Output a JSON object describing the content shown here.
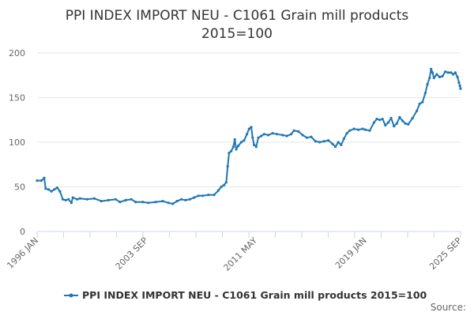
{
  "chart_data": {
    "type": "line",
    "title_lines": [
      "PPI INDEX IMPORT NEU - C1061 Grain mill products",
      "2015=100"
    ],
    "xlabel": "",
    "ylabel": "",
    "x_range": [
      "1996-01",
      "2025-09"
    ],
    "ylim": [
      0,
      200
    ],
    "y_ticks": [
      0,
      50,
      100,
      150,
      200
    ],
    "x_tick_labels": [
      {
        "label": "1996 JAN",
        "t": 1996.0
      },
      {
        "label": "2003 SEP",
        "t": 2003.667
      },
      {
        "label": "2011 MAY",
        "t": 2011.333
      },
      {
        "label": "2019 JAN",
        "t": 2019.0
      },
      {
        "label": "2025 SEP",
        "t": 2025.667
      }
    ],
    "grid": "horizontal",
    "legend_position": "bottom-center",
    "series": [
      {
        "name": "PPI INDEX IMPORT NEU - C1061 Grain mill products 2015=100",
        "color": "#1f77b4",
        "points": [
          [
            1996.0,
            57
          ],
          [
            1996.3,
            57
          ],
          [
            1996.5,
            60
          ],
          [
            1996.6,
            48
          ],
          [
            1996.8,
            47
          ],
          [
            1997.0,
            45
          ],
          [
            1997.2,
            47
          ],
          [
            1997.4,
            49
          ],
          [
            1997.6,
            45
          ],
          [
            1997.8,
            36
          ],
          [
            1998.0,
            35
          ],
          [
            1998.2,
            36
          ],
          [
            1998.4,
            32
          ],
          [
            1998.5,
            38
          ],
          [
            1998.8,
            36
          ],
          [
            1999.0,
            37
          ],
          [
            1999.5,
            36
          ],
          [
            2000.0,
            37
          ],
          [
            2000.5,
            34
          ],
          [
            2001.0,
            35
          ],
          [
            2001.5,
            36
          ],
          [
            2001.8,
            33
          ],
          [
            2002.2,
            35
          ],
          [
            2002.6,
            36
          ],
          [
            2002.9,
            33
          ],
          [
            2003.4,
            33
          ],
          [
            2003.8,
            32
          ],
          [
            2004.3,
            33
          ],
          [
            2004.8,
            34
          ],
          [
            2005.2,
            32
          ],
          [
            2005.5,
            31
          ],
          [
            2005.8,
            34
          ],
          [
            2006.1,
            36
          ],
          [
            2006.4,
            35
          ],
          [
            2006.7,
            36
          ],
          [
            2007.0,
            38
          ],
          [
            2007.3,
            40
          ],
          [
            2007.6,
            40
          ],
          [
            2008.0,
            41
          ],
          [
            2008.4,
            41
          ],
          [
            2008.7,
            46
          ],
          [
            2008.9,
            50
          ],
          [
            2009.1,
            52
          ],
          [
            2009.25,
            55
          ],
          [
            2009.35,
            73
          ],
          [
            2009.45,
            88
          ],
          [
            2009.6,
            90
          ],
          [
            2009.75,
            95
          ],
          [
            2009.85,
            103
          ],
          [
            2009.95,
            92
          ],
          [
            2010.1,
            96
          ],
          [
            2010.3,
            100
          ],
          [
            2010.5,
            102
          ],
          [
            2010.7,
            109
          ],
          [
            2010.85,
            115
          ],
          [
            2011.0,
            117
          ],
          [
            2011.1,
            105
          ],
          [
            2011.2,
            97
          ],
          [
            2011.35,
            95
          ],
          [
            2011.5,
            105
          ],
          [
            2011.7,
            107
          ],
          [
            2011.9,
            109
          ],
          [
            2012.2,
            108
          ],
          [
            2012.5,
            110
          ],
          [
            2012.8,
            109
          ],
          [
            2013.2,
            108
          ],
          [
            2013.5,
            107
          ],
          [
            2013.8,
            109
          ],
          [
            2014.0,
            113
          ],
          [
            2014.3,
            112
          ],
          [
            2014.6,
            108
          ],
          [
            2014.9,
            105
          ],
          [
            2015.2,
            106
          ],
          [
            2015.5,
            101
          ],
          [
            2015.8,
            100
          ],
          [
            2016.1,
            101
          ],
          [
            2016.4,
            102
          ],
          [
            2016.7,
            98
          ],
          [
            2016.9,
            95
          ],
          [
            2017.1,
            100
          ],
          [
            2017.3,
            97
          ],
          [
            2017.5,
            104
          ],
          [
            2017.7,
            110
          ],
          [
            2017.9,
            113
          ],
          [
            2018.2,
            115
          ],
          [
            2018.5,
            114
          ],
          [
            2018.8,
            115
          ],
          [
            2019.0,
            114
          ],
          [
            2019.3,
            113
          ],
          [
            2019.6,
            122
          ],
          [
            2019.8,
            126
          ],
          [
            2020.0,
            125
          ],
          [
            2020.2,
            126
          ],
          [
            2020.4,
            119
          ],
          [
            2020.6,
            122
          ],
          [
            2020.8,
            127
          ],
          [
            2021.0,
            118
          ],
          [
            2021.2,
            121
          ],
          [
            2021.4,
            128
          ],
          [
            2021.6,
            124
          ],
          [
            2021.8,
            121
          ],
          [
            2022.0,
            120
          ],
          [
            2022.3,
            127
          ],
          [
            2022.6,
            135
          ],
          [
            2022.8,
            143
          ],
          [
            2023.0,
            145
          ],
          [
            2023.2,
            155
          ],
          [
            2023.35,
            165
          ],
          [
            2023.5,
            172
          ],
          [
            2023.6,
            182
          ],
          [
            2023.7,
            178
          ],
          [
            2023.8,
            172
          ],
          [
            2024.0,
            176
          ],
          [
            2024.2,
            173
          ],
          [
            2024.4,
            174
          ],
          [
            2024.6,
            179
          ],
          [
            2024.8,
            178
          ],
          [
            2025.0,
            178
          ],
          [
            2025.15,
            176
          ],
          [
            2025.3,
            178
          ],
          [
            2025.45,
            173
          ],
          [
            2025.55,
            167
          ],
          [
            2025.62,
            163
          ],
          [
            2025.667,
            160
          ]
        ]
      }
    ],
    "credits": "Source: "
  }
}
